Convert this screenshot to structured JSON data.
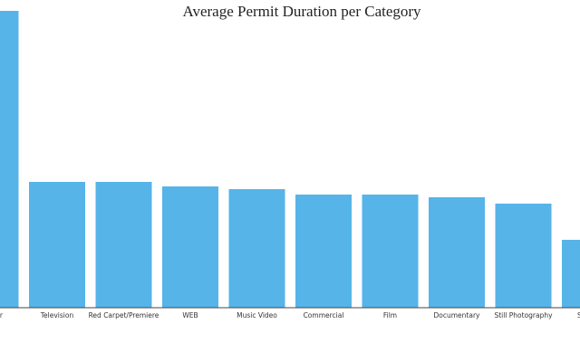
{
  "chart_data": {
    "type": "bar",
    "title": "Average Permit Duration per Category",
    "categories": [
      "r",
      "Television",
      "Red Carpet/Premiere",
      "WEB",
      "Music Video",
      "Commercial",
      "Film",
      "Documentary",
      "Still Photography",
      "S"
    ],
    "values": [
      328,
      139,
      139,
      134,
      131,
      125,
      125,
      122,
      115,
      75
    ],
    "color": "#56b4e9"
  }
}
